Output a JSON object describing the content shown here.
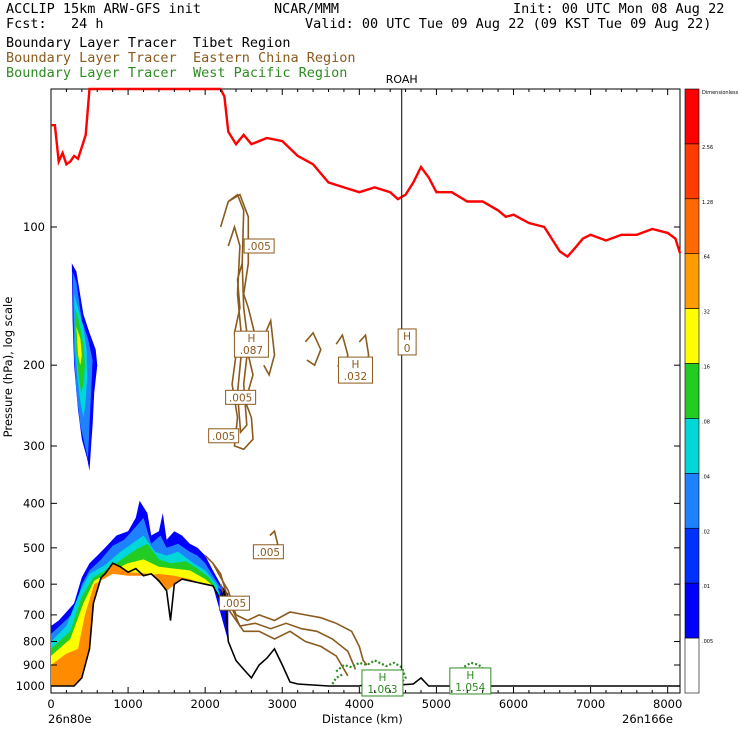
{
  "header": {
    "left_line1": "ACCLIP 15km ARW-GFS init",
    "left_line2": "Fcst:   24 h",
    "center_line1": "NCAR/MMM",
    "right_line1": "Init: 00 UTC Mon 08 Aug 22",
    "right_line2": "Valid: 00 UTC Tue 09 Aug 22 (09 KST Tue 09 Aug 22)",
    "tracer_tibet": "Boundary Layer Tracer  Tibet Region",
    "tracer_china_prefix": "Boundary Layer Tracer  ",
    "tracer_china_region": "Eastern China Region",
    "tracer_wpac_prefix": "Boundary Layer Tracer  ",
    "tracer_wpac_region": "West Pacific Region"
  },
  "colors": {
    "tibet_fill_high": "#ff8c00",
    "tibet_fill_mid": "#ffff00",
    "tibet_fill_green": "#22cc22",
    "tibet_fill_cyan": "#00d7d7",
    "tibet_fill_blue": "#1e82ff",
    "tibet_fill_darkblue": "#0000ff",
    "china_contour": "#8b5a1e",
    "wpac_contour": "#2e8b22",
    "tropopause": "#ff0000",
    "terrain": "#000000"
  },
  "chart_data": {
    "type": "heatmap",
    "title": "",
    "xlabel": "Distance (km)",
    "ylabel": "Pressure (hPa), log scale",
    "x_ticks": [
      0,
      1000,
      2000,
      3000,
      4000,
      5000,
      6000,
      7000,
      8000
    ],
    "y_ticks": [
      100,
      200,
      300,
      400,
      500,
      600,
      700,
      800,
      900,
      1000
    ],
    "y_scale": "log",
    "xlim": [
      0,
      8160
    ],
    "x_endpoints": {
      "left": "26n80e",
      "right": "26n166e"
    },
    "vertical_marker": {
      "label": "ROAH",
      "x_km": 4550
    },
    "colorbar": {
      "levels": [
        "Dimensionless",
        "2.56",
        "1.28",
        ".64",
        ".32",
        ".16",
        ".08",
        ".04",
        ".02",
        ".01",
        ".005"
      ],
      "colors": [
        "#ff0000",
        "#ff3c00",
        "#ff6a00",
        "#ff9c00",
        "#ffff00",
        "#22cc22",
        "#00d7d7",
        "#1e82ff",
        "#0032ff",
        "#0000ff",
        "#ffffff"
      ]
    },
    "contour_labels": [
      {
        "text": ".005",
        "x_km": 2700,
        "p_hpa": 110,
        "series": "Eastern China Region"
      },
      {
        "text": "H",
        "sub": ".087",
        "x_km": 2600,
        "p_hpa": 180,
        "series": "Eastern China Region"
      },
      {
        "text": "H",
        "sub": "0",
        "x_km": 4620,
        "p_hpa": 178,
        "series": "Eastern China Region"
      },
      {
        "text": "H",
        "sub": ".032",
        "x_km": 3950,
        "p_hpa": 205,
        "series": "Eastern China Region"
      },
      {
        "text": ".005",
        "x_km": 2460,
        "p_hpa": 235,
        "series": "Eastern China Region"
      },
      {
        "text": ".005",
        "x_km": 2240,
        "p_hpa": 285,
        "series": "Eastern China Region"
      },
      {
        "text": ".005",
        "x_km": 2820,
        "p_hpa": 510,
        "series": "Eastern China Region"
      },
      {
        "text": ".005",
        "x_km": 2380,
        "p_hpa": 660,
        "series": "Eastern China Region"
      },
      {
        "text": "H",
        "sub": "1.063",
        "x_km": 4300,
        "p_hpa": 985,
        "series": "West Pacific Region"
      },
      {
        "text": "H",
        "sub": "1.054",
        "x_km": 5440,
        "p_hpa": 975,
        "series": "West Pacific Region"
      }
    ],
    "tropopause_p_hpa": [
      [
        0,
        60
      ],
      [
        50,
        60
      ],
      [
        100,
        72
      ],
      [
        150,
        69
      ],
      [
        200,
        73
      ],
      [
        250,
        72
      ],
      [
        300,
        70
      ],
      [
        350,
        71
      ],
      [
        400,
        67
      ],
      [
        450,
        63
      ],
      [
        500,
        48
      ],
      [
        600,
        45
      ],
      [
        700,
        43
      ],
      [
        750,
        45
      ],
      [
        900,
        45
      ],
      [
        1000,
        40
      ],
      [
        1250,
        42
      ],
      [
        1500,
        41
      ],
      [
        1600,
        43
      ],
      [
        1800,
        45
      ],
      [
        2100,
        50
      ],
      [
        2200,
        40
      ],
      [
        2250,
        52
      ],
      [
        2300,
        62
      ],
      [
        2400,
        66
      ],
      [
        2500,
        63
      ],
      [
        2600,
        66
      ],
      [
        2800,
        64
      ],
      [
        3000,
        65
      ],
      [
        3200,
        70
      ],
      [
        3400,
        73
      ],
      [
        3600,
        80
      ],
      [
        3800,
        82
      ],
      [
        4000,
        84
      ],
      [
        4200,
        82
      ],
      [
        4400,
        84
      ],
      [
        4500,
        87
      ],
      [
        4600,
        85
      ],
      [
        4700,
        80
      ],
      [
        4800,
        74
      ],
      [
        4900,
        78
      ],
      [
        5000,
        84
      ],
      [
        5200,
        84
      ],
      [
        5400,
        88
      ],
      [
        5600,
        88
      ],
      [
        5800,
        92
      ],
      [
        5900,
        95
      ],
      [
        6000,
        94
      ],
      [
        6200,
        98
      ],
      [
        6400,
        100
      ],
      [
        6600,
        113
      ],
      [
        6700,
        116
      ],
      [
        6800,
        111
      ],
      [
        6900,
        106
      ],
      [
        7000,
        104
      ],
      [
        7200,
        107
      ],
      [
        7400,
        104
      ],
      [
        7600,
        104
      ],
      [
        7800,
        101
      ],
      [
        8000,
        103
      ],
      [
        8100,
        106
      ],
      [
        8160,
        114
      ]
    ],
    "terrain_p_hpa": [
      [
        0,
        1000
      ],
      [
        300,
        1000
      ],
      [
        400,
        960
      ],
      [
        500,
        830
      ],
      [
        550,
        660
      ],
      [
        650,
        580
      ],
      [
        700,
        570
      ],
      [
        800,
        540
      ],
      [
        900,
        550
      ],
      [
        1000,
        565
      ],
      [
        1100,
        555
      ],
      [
        1200,
        575
      ],
      [
        1300,
        570
      ],
      [
        1400,
        590
      ],
      [
        1500,
        620
      ],
      [
        1550,
        720
      ],
      [
        1600,
        600
      ],
      [
        1700,
        585
      ],
      [
        1800,
        590
      ],
      [
        1900,
        595
      ],
      [
        2000,
        600
      ],
      [
        2100,
        605
      ],
      [
        2200,
        650
      ],
      [
        2250,
        620
      ],
      [
        2300,
        800
      ],
      [
        2400,
        880
      ],
      [
        2500,
        920
      ],
      [
        2600,
        960
      ],
      [
        2700,
        900
      ],
      [
        2800,
        870
      ],
      [
        2900,
        830
      ],
      [
        3000,
        900
      ],
      [
        3100,
        980
      ],
      [
        3200,
        990
      ],
      [
        3400,
        995
      ],
      [
        3600,
        1000
      ],
      [
        4000,
        1000
      ],
      [
        4200,
        980
      ],
      [
        4300,
        1000
      ],
      [
        4700,
        990
      ],
      [
        4800,
        960
      ],
      [
        4900,
        1000
      ],
      [
        8160,
        1000
      ]
    ]
  }
}
